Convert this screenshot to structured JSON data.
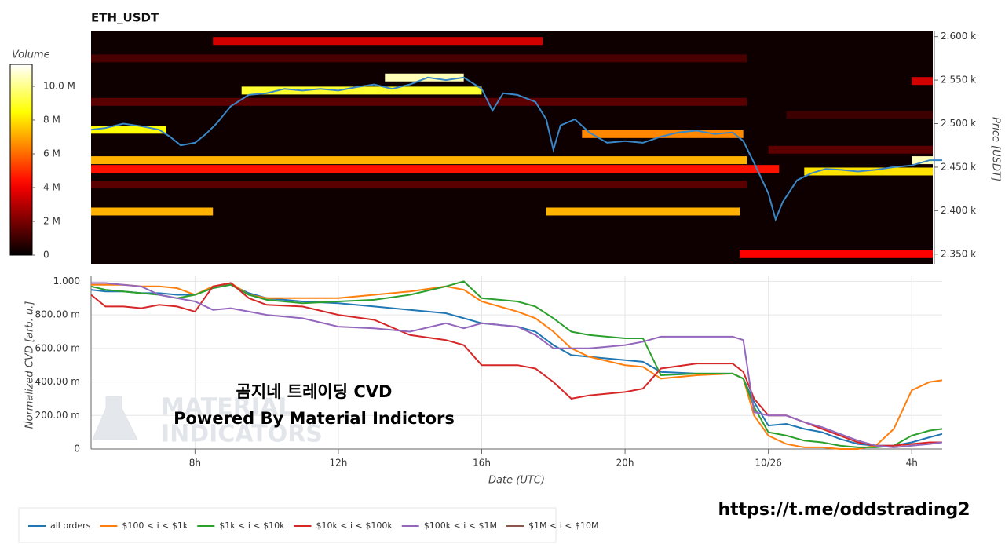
{
  "chart_data": [
    {
      "type": "heatmap",
      "title": "ETH_USDT",
      "y_label": "Price [USDT]",
      "color_label": "Volume",
      "xlim": [
        5.1,
        28.85
      ],
      "ylim": [
        2339,
        2606
      ],
      "yticks": [
        {
          "value": 2350,
          "label": "2.350 k"
        },
        {
          "value": 2400,
          "label": "2.400 k"
        },
        {
          "value": 2450,
          "label": "2.450 k"
        },
        {
          "value": 2500,
          "label": "2.500 k"
        },
        {
          "value": 2550,
          "label": "2.550 k"
        },
        {
          "value": 2600,
          "label": "2.600 k"
        }
      ],
      "colormap": "hot",
      "color_lim": [
        0,
        11300000
      ],
      "color_ticks": [
        0,
        {
          "value": 2000000,
          "label": "2 M"
        },
        {
          "value": 4000000,
          "label": "4 M"
        },
        {
          "value": 6000000,
          "label": "6 M"
        },
        {
          "value": 8000000,
          "label": "8 M"
        },
        {
          "value": 10000000,
          "label": "10.0 M"
        }
      ],
      "levels": [
        {
          "price": 2575,
          "x0": 5.1,
          "x1": 23.4,
          "volume": 1200000
        },
        {
          "price": 2525,
          "x0": 5.1,
          "x1": 23.4,
          "volume": 1500000
        },
        {
          "price": 2430,
          "x0": 5.1,
          "x1": 23.4,
          "volume": 1500000
        },
        {
          "price": 2470,
          "x0": 24.0,
          "x1": 28.6,
          "volume": 1500000
        },
        {
          "price": 2510,
          "x0": 24.5,
          "x1": 28.6,
          "volume": 1000000
        },
        {
          "price": 2595,
          "x0": 8.5,
          "x1": 17.7,
          "volume": 3500000
        },
        {
          "price": 2458,
          "x0": 5.1,
          "x1": 23.4,
          "volume": 7200000
        },
        {
          "price": 2448,
          "x0": 5.1,
          "x1": 24.3,
          "volume": 4500000
        },
        {
          "price": 2399,
          "x0": 5.1,
          "x1": 8.5,
          "volume": 7200000
        },
        {
          "price": 2399,
          "x0": 17.8,
          "x1": 23.2,
          "volume": 7200000
        },
        {
          "price": 2350,
          "x0": 23.2,
          "x1": 28.6,
          "volume": 4200000
        },
        {
          "price": 2549,
          "x0": 28.0,
          "x1": 28.6,
          "volume": 3500000
        },
        {
          "price": 2493,
          "x0": 5.1,
          "x1": 7.2,
          "volume": 8500000
        },
        {
          "price": 2538,
          "x0": 9.3,
          "x1": 16.0,
          "volume": 9000000
        },
        {
          "price": 2553,
          "x0": 13.3,
          "x1": 15.5,
          "volume": 10500000
        },
        {
          "price": 2488,
          "x0": 18.8,
          "x1": 23.3,
          "volume": 6500000
        },
        {
          "price": 2445,
          "x0": 25.0,
          "x1": 28.6,
          "volume": 8000000
        },
        {
          "price": 2458,
          "x0": 28.0,
          "x1": 28.6,
          "volume": 10500000
        }
      ],
      "price": {
        "color": "#3a87c8",
        "x": [
          5.1,
          5.5,
          6.0,
          6.5,
          7.0,
          7.3,
          7.6,
          8.0,
          8.3,
          8.6,
          9.0,
          9.5,
          10,
          10.5,
          11,
          11.5,
          12,
          12.5,
          13,
          13.5,
          14,
          14.5,
          15,
          15.5,
          16,
          16.3,
          16.6,
          17,
          17.5,
          17.8,
          18.0,
          18.2,
          18.6,
          19,
          19.5,
          20,
          20.5,
          21,
          21.5,
          22,
          22.5,
          23,
          23.3,
          23.6,
          24.0,
          24.2,
          24.4,
          24.8,
          25.2,
          25.6,
          26,
          26.5,
          27,
          27.5,
          28,
          28.5,
          28.85
        ],
        "values": [
          2493,
          2495,
          2500,
          2497,
          2493,
          2485,
          2475,
          2478,
          2488,
          2500,
          2520,
          2533,
          2535,
          2540,
          2538,
          2540,
          2538,
          2542,
          2545,
          2540,
          2545,
          2553,
          2550,
          2553,
          2540,
          2515,
          2535,
          2533,
          2525,
          2505,
          2470,
          2498,
          2505,
          2490,
          2478,
          2480,
          2478,
          2485,
          2490,
          2492,
          2488,
          2490,
          2480,
          2455,
          2420,
          2390,
          2410,
          2435,
          2443,
          2448,
          2447,
          2445,
          2447,
          2450,
          2452,
          2458,
          2458
        ]
      }
    },
    {
      "type": "line",
      "y_label": "Normalized CVD [arb. u.]",
      "x_label": "Date (UTC)",
      "xlim": [
        5.1,
        28.85
      ],
      "xticks": [
        {
          "value": 8,
          "label": "8h"
        },
        {
          "value": 12,
          "label": "12h"
        },
        {
          "value": 16,
          "label": "16h"
        },
        {
          "value": 20,
          "label": "20h"
        },
        {
          "value": 24,
          "label": "10/26"
        },
        {
          "value": 28,
          "label": "4h"
        }
      ],
      "ylim": [
        0,
        1.03
      ],
      "yticks": [
        0,
        {
          "value": 0.2,
          "label": "200.00 m"
        },
        {
          "value": 0.4,
          "label": "400.00 m"
        },
        {
          "value": 0.6,
          "label": "600.00 m"
        },
        {
          "value": 0.8,
          "label": "800.00 m"
        },
        {
          "value": 1,
          "label": "1.000"
        }
      ],
      "grid": true,
      "annotations": [
        "곰지네 트레이딩 CVD",
        "Powered By Material Indictors"
      ],
      "watermark": [
        "MATERIAL",
        "INDICATORS"
      ],
      "x": [
        5.1,
        5.5,
        6,
        6.5,
        7,
        7.5,
        8,
        8.5,
        9,
        9.5,
        10,
        11,
        12,
        13,
        14,
        15,
        15.5,
        16,
        17,
        17.5,
        18,
        18.5,
        19,
        20,
        20.5,
        21,
        22,
        23,
        23.3,
        23.6,
        24,
        24.5,
        25,
        25.5,
        26,
        26.5,
        27,
        27.5,
        28,
        28.5,
        28.85
      ],
      "series": [
        {
          "name": "all orders",
          "color": "#1f77b4",
          "values": [
            0.95,
            0.94,
            0.94,
            0.93,
            0.93,
            0.92,
            0.92,
            0.96,
            0.98,
            0.93,
            0.9,
            0.88,
            0.87,
            0.85,
            0.83,
            0.81,
            0.78,
            0.75,
            0.73,
            0.7,
            0.62,
            0.56,
            0.55,
            0.53,
            0.52,
            0.46,
            0.45,
            0.45,
            0.42,
            0.28,
            0.14,
            0.15,
            0.12,
            0.1,
            0.06,
            0.03,
            0.02,
            0.02,
            0.04,
            0.07,
            0.09
          ]
        },
        {
          "name": "$100 < i < $1k",
          "color": "#ff7f0e",
          "values": [
            0.98,
            0.98,
            0.98,
            0.97,
            0.97,
            0.96,
            0.92,
            0.97,
            0.99,
            0.92,
            0.9,
            0.9,
            0.9,
            0.92,
            0.94,
            0.97,
            0.95,
            0.88,
            0.82,
            0.78,
            0.7,
            0.6,
            0.55,
            0.5,
            0.49,
            0.42,
            0.44,
            0.45,
            0.42,
            0.2,
            0.08,
            0.03,
            0.01,
            0.01,
            0.0,
            0.0,
            0.02,
            0.12,
            0.35,
            0.4,
            0.41
          ]
        },
        {
          "name": "$1k < i < $10k",
          "color": "#2ca02c",
          "values": [
            0.97,
            0.95,
            0.94,
            0.93,
            0.92,
            0.9,
            0.92,
            0.96,
            0.98,
            0.92,
            0.89,
            0.87,
            0.88,
            0.89,
            0.92,
            0.97,
            1.0,
            0.9,
            0.88,
            0.85,
            0.78,
            0.7,
            0.68,
            0.66,
            0.66,
            0.44,
            0.45,
            0.45,
            0.42,
            0.25,
            0.1,
            0.08,
            0.05,
            0.04,
            0.02,
            0.01,
            0.01,
            0.02,
            0.08,
            0.11,
            0.12
          ]
        },
        {
          "name": "$10k < i < $100k",
          "color": "#d62728",
          "values": [
            0.92,
            0.85,
            0.85,
            0.84,
            0.86,
            0.85,
            0.82,
            0.97,
            0.99,
            0.9,
            0.86,
            0.85,
            0.8,
            0.77,
            0.68,
            0.65,
            0.62,
            0.5,
            0.5,
            0.48,
            0.4,
            0.3,
            0.32,
            0.34,
            0.36,
            0.48,
            0.51,
            0.51,
            0.46,
            0.3,
            0.2,
            0.2,
            0.16,
            0.12,
            0.08,
            0.04,
            0.02,
            0.02,
            0.03,
            0.04,
            0.04
          ]
        },
        {
          "name": "$100k < i < $1M",
          "color": "#9467bd",
          "values": [
            0.99,
            0.99,
            0.98,
            0.97,
            0.92,
            0.9,
            0.88,
            0.83,
            0.84,
            0.82,
            0.8,
            0.78,
            0.73,
            0.72,
            0.7,
            0.75,
            0.72,
            0.75,
            0.73,
            0.68,
            0.6,
            0.6,
            0.6,
            0.62,
            0.64,
            0.67,
            0.67,
            0.67,
            0.65,
            0.22,
            0.2,
            0.2,
            0.16,
            0.13,
            0.09,
            0.05,
            0.02,
            0.01,
            0.02,
            0.03,
            0.04
          ]
        },
        {
          "name": "$1M < i < $10M",
          "color": "#8c564b",
          "values": [
            null,
            null,
            null,
            null,
            null,
            null,
            null,
            null,
            null,
            null,
            null,
            null,
            null,
            null,
            null,
            null,
            null,
            null,
            null,
            null,
            null,
            null,
            null,
            null,
            null,
            null,
            null,
            null,
            null,
            null,
            null,
            null,
            null,
            null,
            null,
            null,
            null,
            null,
            null,
            null,
            null
          ]
        }
      ]
    }
  ],
  "link": "https://t.me/oddstrading2"
}
